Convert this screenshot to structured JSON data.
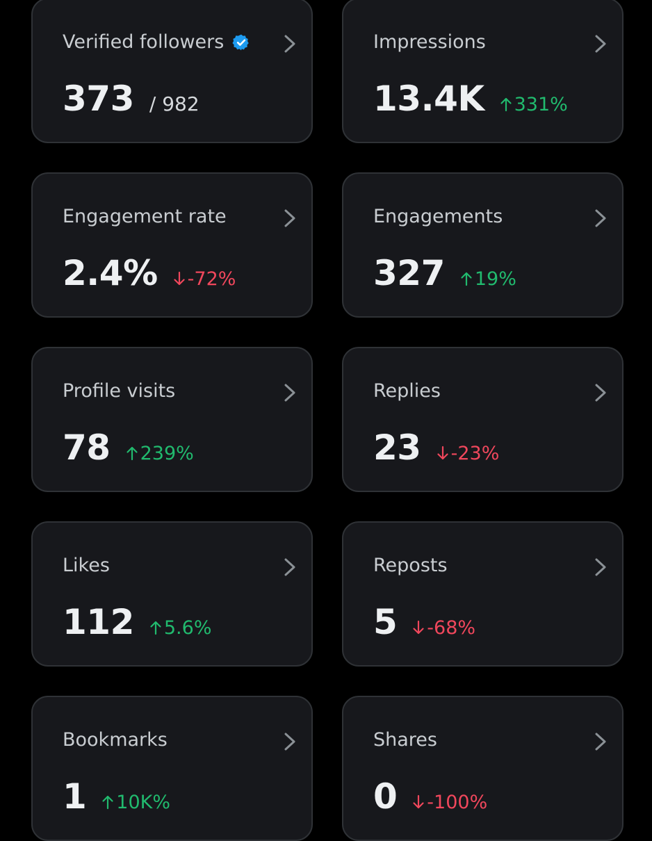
{
  "colors": {
    "background": "#000000",
    "card_background": "#17181c",
    "card_border": "#2f3236",
    "positive": "#21ba6e",
    "negative": "#f0475c",
    "verified_badge": "#1d9bf0"
  },
  "cards": [
    {
      "name": "verified-followers",
      "title": "Verified followers",
      "value": "373",
      "sub": "/ 982",
      "badge_icon": "verified-badge-icon"
    },
    {
      "name": "impressions",
      "title": "Impressions",
      "value": "13.4K",
      "delta": "331%",
      "direction": "up"
    },
    {
      "name": "engagement-rate",
      "title": "Engagement rate",
      "value": "2.4%",
      "delta": "-72%",
      "direction": "down"
    },
    {
      "name": "engagements",
      "title": "Engagements",
      "value": "327",
      "delta": "19%",
      "direction": "up"
    },
    {
      "name": "profile-visits",
      "title": "Profile visits",
      "value": "78",
      "delta": "239%",
      "direction": "up"
    },
    {
      "name": "replies",
      "title": "Replies",
      "value": "23",
      "delta": "-23%",
      "direction": "down"
    },
    {
      "name": "likes",
      "title": "Likes",
      "value": "112",
      "delta": "5.6%",
      "direction": "up"
    },
    {
      "name": "reposts",
      "title": "Reposts",
      "value": "5",
      "delta": "-68%",
      "direction": "down"
    },
    {
      "name": "bookmarks",
      "title": "Bookmarks",
      "value": "1",
      "delta": "10K%",
      "direction": "up"
    },
    {
      "name": "shares",
      "title": "Shares",
      "value": "0",
      "delta": "-100%",
      "direction": "down"
    }
  ]
}
